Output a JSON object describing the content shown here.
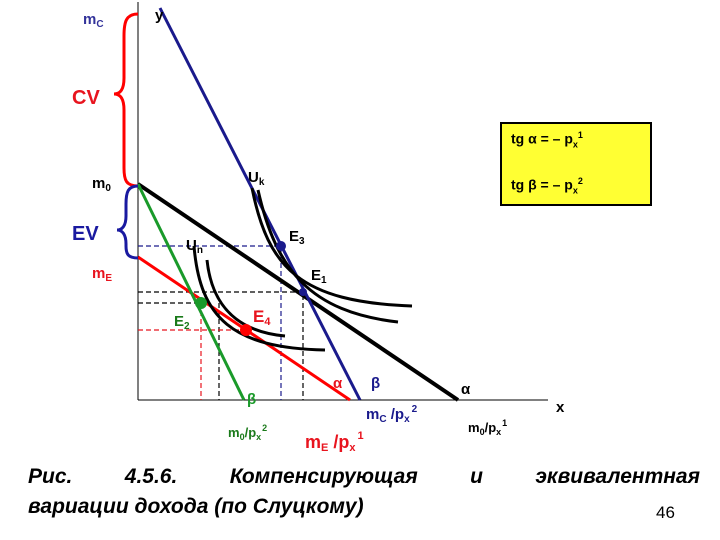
{
  "diagram": {
    "axis_y_label": "y",
    "axis_x_label": "x",
    "labels": {
      "mC": {
        "main": "m",
        "sub": "C"
      },
      "m0": {
        "main": "m",
        "sub": "0"
      },
      "mE": {
        "main": "m",
        "sub": "E"
      },
      "CV": "CV",
      "EV": "EV",
      "Uk": {
        "main": "U",
        "sub": "k"
      },
      "Un": {
        "main": "U",
        "sub": "n"
      },
      "E1": {
        "main": "E",
        "sub": "1"
      },
      "E2": {
        "main": "E",
        "sub": "2"
      },
      "E3": {
        "main": "E",
        "sub": "3"
      },
      "E4": {
        "main": "E",
        "sub": "4"
      },
      "alpha_red": "α",
      "beta_blue": "β",
      "beta_green": "β",
      "alpha_black": "α",
      "mC_px2": {
        "main": "m",
        "sub": "C",
        "rest": " /p",
        "rest_sub": "x",
        "sup": "2"
      },
      "m0_px1": {
        "main": "m",
        "sub": "0",
        "rest": "/p",
        "rest_sub": "x",
        "sup": "1"
      },
      "m0_px2": {
        "main": "m",
        "sub": "0",
        "rest": "/p",
        "rest_sub": "x",
        "sup": "2"
      },
      "mE_px1": {
        "main": "m",
        "sub": "E",
        "rest": " /p",
        "rest_sub": "x",
        "sup": "1"
      }
    },
    "colors": {
      "black": "#000000",
      "blue": "#1a1a8c",
      "red": "#ff0000",
      "green": "#1a9a2a",
      "box_fill": "#ffff33",
      "label_blue": "#33339a",
      "label_red": "#e8141e",
      "label_green": "#1a7a1a",
      "ev_blue": "#1a1aa0"
    }
  },
  "formula": {
    "line1": {
      "pre": "tg ",
      "greek": "α",
      "mid": " =  –  p",
      "sub": "x",
      "sup": "1"
    },
    "line2": {
      "pre": "tg ",
      "greek": "β",
      "mid": " = –  p",
      "sub": "x",
      "sup": "2"
    }
  },
  "caption": {
    "line1_words": [
      "Рис.",
      "4.5.6.",
      "Компенсирующая",
      "и",
      "эквивалентная"
    ],
    "line2": "вариации дохода (по Слуцкому)"
  },
  "page_number": "46"
}
